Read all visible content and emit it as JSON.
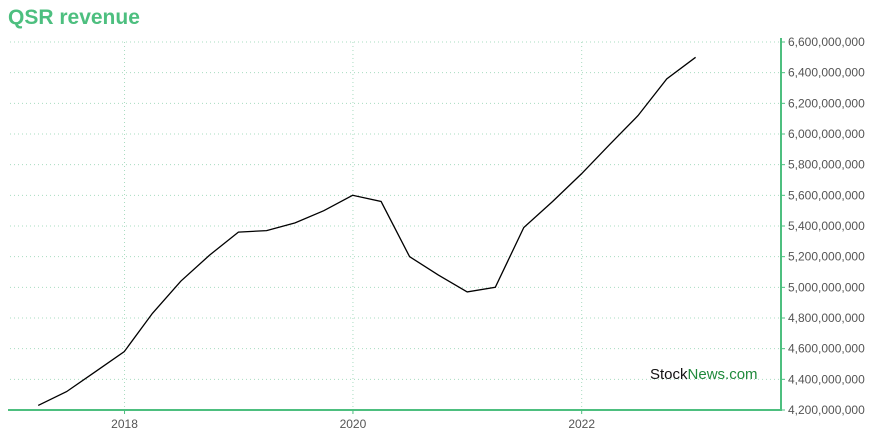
{
  "chart_data": {
    "type": "line",
    "title": "QSR revenue",
    "xlabel": "",
    "ylabel": "",
    "x_ticks": [
      "2018",
      "2020",
      "2022"
    ],
    "y_ticks": [
      "4,200,000,000",
      "4,400,000,000",
      "4,600,000,000",
      "4,800,000,000",
      "5,000,000,000",
      "5,200,000,000",
      "5,400,000,000",
      "5,600,000,000",
      "5,800,000,000",
      "6,000,000,000",
      "6,200,000,000",
      "6,400,000,000",
      "6,600,000,000"
    ],
    "ylim": [
      4200000000,
      6600000000
    ],
    "xlim": [
      "2016-12-31",
      "2023-09-30"
    ],
    "grid": true,
    "line_color": "#000000",
    "accent_color": "#4dbf7f",
    "series": [
      {
        "x": [
          "2017-03-31",
          "2017-06-30",
          "2017-09-30",
          "2017-12-31",
          "2018-03-31",
          "2018-06-30",
          "2018-09-30",
          "2018-12-31",
          "2019-03-31",
          "2019-06-30",
          "2019-09-30",
          "2019-12-31",
          "2020-03-31",
          "2020-06-30",
          "2020-09-30",
          "2020-12-31",
          "2021-03-31",
          "2021-06-30",
          "2021-09-30",
          "2021-12-31",
          "2022-03-31",
          "2022-06-30",
          "2022-09-30",
          "2022-12-31"
        ],
        "values": [
          4230000000,
          4320000000,
          4450000000,
          4580000000,
          4830000000,
          5040000000,
          5210000000,
          5360000000,
          5370000000,
          5420000000,
          5500000000,
          5600000000,
          5560000000,
          5200000000,
          5080000000,
          4970000000,
          5000000000,
          5390000000,
          5560000000,
          5740000000,
          5930000000,
          6120000000,
          6360000000,
          6500000000
        ]
      }
    ]
  },
  "watermark": {
    "part1": "Stock",
    "part2": "News.com"
  }
}
